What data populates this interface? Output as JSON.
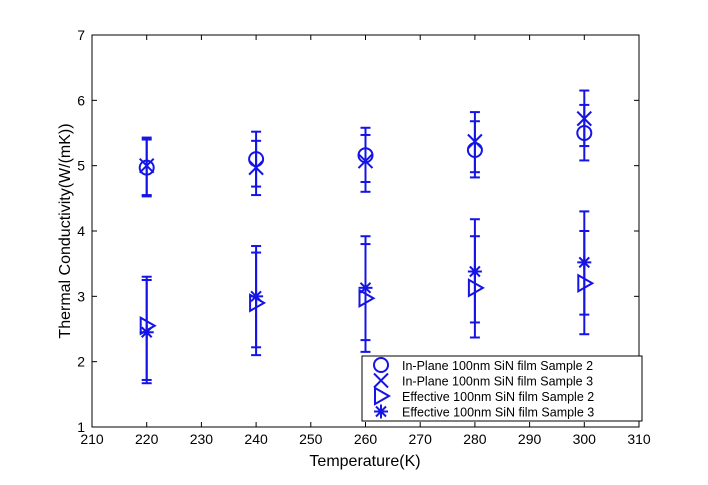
{
  "chart_data": {
    "type": "scatter",
    "title": "",
    "xlabel": "Temperature(K)",
    "ylabel": "Thermal Conductivity(W/(mK))",
    "xlim": [
      210,
      310
    ],
    "ylim": [
      1,
      7
    ],
    "xticks": [
      210,
      220,
      230,
      240,
      250,
      260,
      270,
      280,
      290,
      300,
      310
    ],
    "yticks": [
      1,
      2,
      3,
      4,
      5,
      6,
      7
    ],
    "grid": false,
    "legend_position": "bottom-right",
    "series_color": "#1414e6",
    "series": [
      {
        "name": "In-Plane 100nm SiN film Sample 2",
        "marker": "circle",
        "x": [
          220,
          240,
          260,
          280,
          300
        ],
        "y": [
          4.97,
          5.1,
          5.16,
          5.24,
          5.5
        ],
        "err_low": [
          4.55,
          4.68,
          4.75,
          4.82,
          5.08
        ],
        "err_high": [
          5.4,
          5.38,
          5.47,
          5.68,
          5.93
        ]
      },
      {
        "name": "In-Plane 100nm SiN film Sample 3",
        "marker": "x",
        "x": [
          220,
          240,
          260,
          280,
          300
        ],
        "y": [
          5.0,
          4.97,
          5.07,
          5.37,
          5.72
        ],
        "err_low": [
          4.53,
          4.55,
          4.6,
          4.9,
          5.3
        ],
        "err_high": [
          5.43,
          5.52,
          5.58,
          5.82,
          6.15
        ]
      },
      {
        "name": "Effective 100nm SiN film Sample 2",
        "marker": "triangle-right",
        "x": [
          220,
          240,
          260,
          280,
          300
        ],
        "y": [
          2.55,
          2.9,
          2.97,
          3.13,
          3.2
        ],
        "err_low": [
          1.72,
          2.1,
          2.15,
          2.37,
          2.42
        ],
        "err_high": [
          3.3,
          3.67,
          3.8,
          3.92,
          4.0
        ]
      },
      {
        "name": "Effective 100nm SiN film Sample 3",
        "marker": "asterisk",
        "x": [
          220,
          240,
          260,
          280,
          300
        ],
        "y": [
          2.45,
          3.0,
          3.13,
          3.38,
          3.52
        ],
        "err_low": [
          1.67,
          2.22,
          2.33,
          2.6,
          2.72
        ],
        "err_high": [
          3.25,
          3.77,
          3.92,
          4.18,
          4.3
        ]
      }
    ]
  }
}
